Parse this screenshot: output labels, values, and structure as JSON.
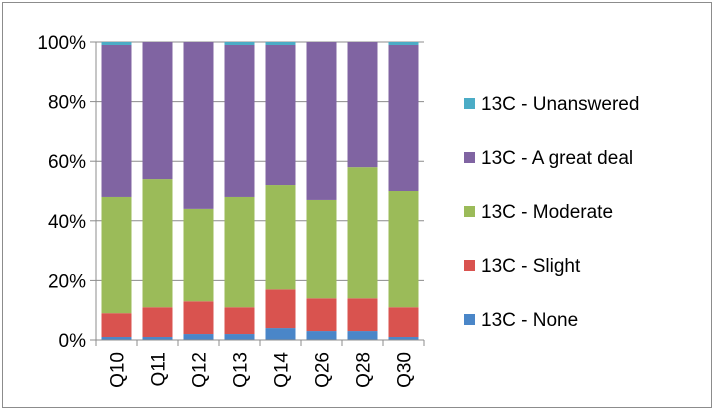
{
  "chart_data": {
    "type": "bar",
    "stacked": true,
    "percent": true,
    "categories": [
      "Q10",
      "Q11",
      "Q12",
      "Q13",
      "Q14",
      "Q26",
      "Q28",
      "Q30"
    ],
    "series": [
      {
        "name": "13C - None",
        "color": "#4a86c8",
        "values": [
          1,
          1,
          2,
          2,
          4,
          3,
          3,
          1
        ]
      },
      {
        "name": "13C - Slight",
        "color": "#d9534f",
        "values": [
          8,
          10,
          11,
          9,
          13,
          11,
          11,
          10
        ]
      },
      {
        "name": "13C - Moderate",
        "color": "#9bbb59",
        "values": [
          39,
          43,
          31,
          37,
          35,
          33,
          44,
          39
        ]
      },
      {
        "name": "13C - A great deal",
        "color": "#8064a2",
        "values": [
          51,
          46,
          56,
          51,
          47,
          53,
          42,
          49
        ]
      },
      {
        "name": "13C - Unanswered",
        "color": "#4bacc6",
        "values": [
          1,
          0,
          0,
          1,
          1,
          0,
          0,
          1
        ]
      }
    ],
    "y_ticks": [
      "0%",
      "20%",
      "40%",
      "60%",
      "80%",
      "100%"
    ],
    "ylim": [
      0,
      100
    ],
    "grid": true,
    "legend_position": "right"
  }
}
